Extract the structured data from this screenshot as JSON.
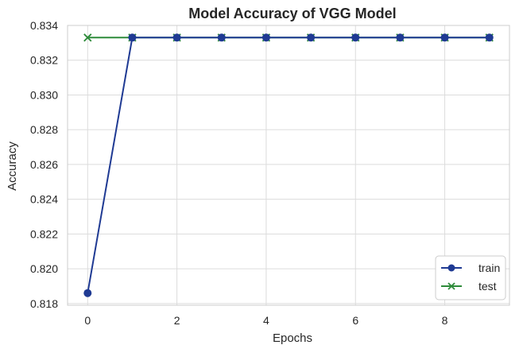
{
  "chart_data": {
    "type": "line",
    "title": "Model Accuracy of VGG Model",
    "xlabel": "Epochs",
    "ylabel": "Accuracy",
    "x": [
      0,
      1,
      2,
      3,
      4,
      5,
      6,
      7,
      8,
      9
    ],
    "xlim": [
      -0.45,
      9.45
    ],
    "ylim": [
      0.8179,
      0.834
    ],
    "xticks": [
      0,
      2,
      4,
      6,
      8
    ],
    "xtick_labels": [
      "0",
      "2",
      "4",
      "6",
      "8"
    ],
    "yticks": [
      0.818,
      0.82,
      0.822,
      0.824,
      0.826,
      0.828,
      0.83,
      0.832,
      0.834
    ],
    "ytick_labels": [
      "0.818",
      "0.820",
      "0.822",
      "0.824",
      "0.826",
      "0.828",
      "0.830",
      "0.832",
      "0.834"
    ],
    "grid": true,
    "legend_position": "bottom-right",
    "series": [
      {
        "name": "train",
        "marker": "circle",
        "color": "#1f3a93",
        "values": [
          0.8186,
          0.8333,
          0.8333,
          0.8333,
          0.8333,
          0.8333,
          0.8333,
          0.8333,
          0.8333,
          0.8333
        ]
      },
      {
        "name": "test",
        "marker": "x",
        "color": "#2e8b3a",
        "values": [
          0.8333,
          0.8333,
          0.8333,
          0.8333,
          0.8333,
          0.8333,
          0.8333,
          0.8333,
          0.8333,
          0.8333
        ]
      }
    ]
  }
}
